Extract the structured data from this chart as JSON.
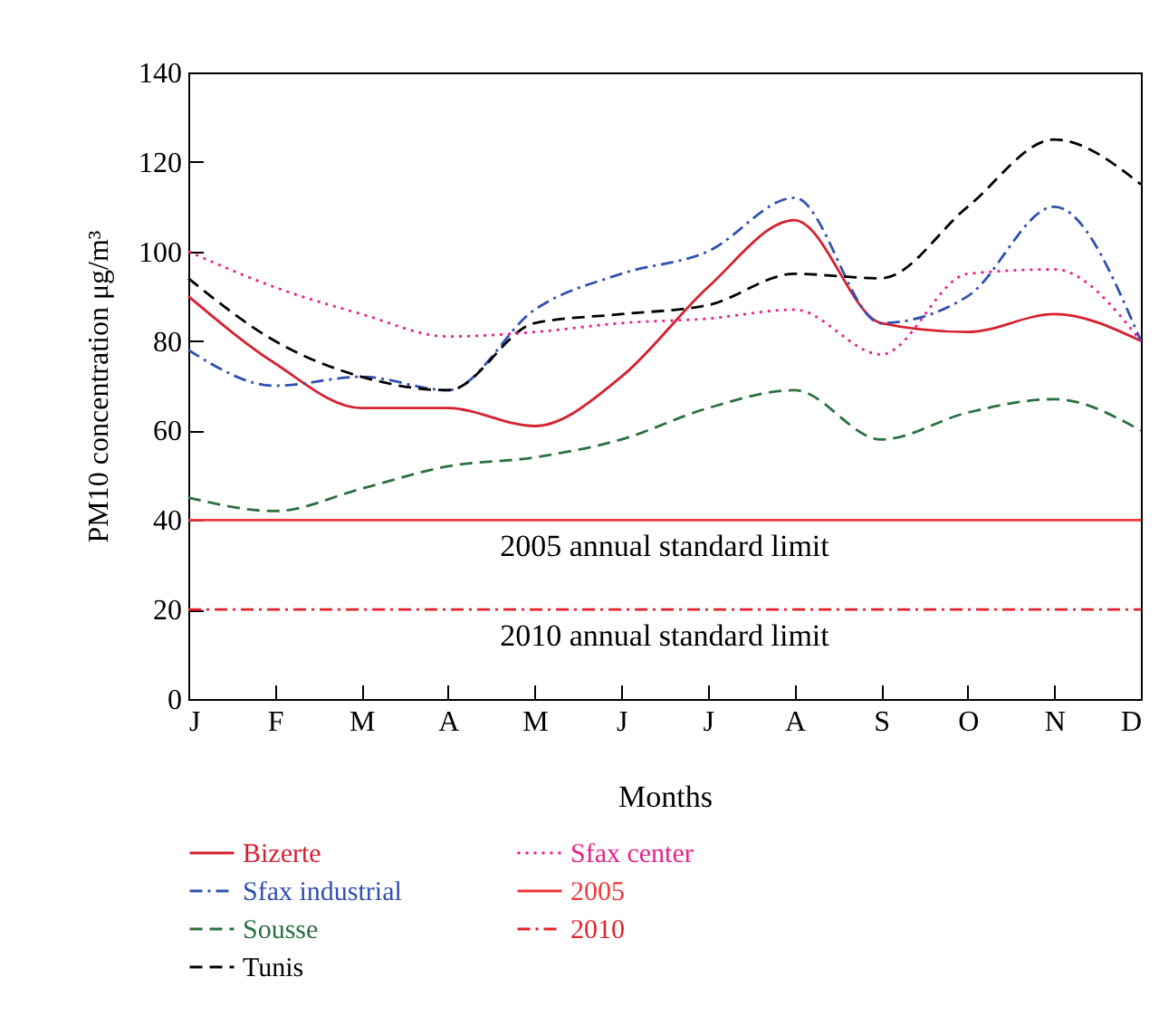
{
  "chart_data": {
    "type": "line",
    "xlabel": "Months",
    "ylabel": "PM10 concentration μg/m³",
    "categories": [
      "J",
      "F",
      "M",
      "A",
      "M",
      "J",
      "J",
      "A",
      "S",
      "O",
      "N",
      "D"
    ],
    "ylim": [
      0,
      140
    ],
    "yticks": [
      0,
      20,
      40,
      60,
      80,
      100,
      120,
      140
    ],
    "grid": false,
    "legend": "bottom",
    "series": [
      {
        "name": "Bizerte",
        "color": "#d62030",
        "line_style": "solid",
        "values": [
          90,
          75,
          65,
          65,
          61,
          72,
          92,
          107,
          84,
          82,
          86,
          80
        ]
      },
      {
        "name": "Sfax industrial",
        "color": "#3050b0",
        "line_style": "dashdot",
        "values": [
          78,
          70,
          72,
          69,
          87,
          95,
          100,
          112,
          84,
          90,
          110,
          80
        ]
      },
      {
        "name": "Sousse",
        "color": "#2a7040",
        "line_style": "dashed",
        "values": [
          45,
          42,
          47,
          52,
          54,
          58,
          65,
          69,
          58,
          64,
          67,
          60
        ]
      },
      {
        "name": "Tunis",
        "color": "#000000",
        "line_style": "dashed",
        "values": [
          94,
          80,
          72,
          69,
          84,
          86,
          88,
          95,
          94,
          110,
          125,
          115
        ]
      },
      {
        "name": "Sfax center",
        "color": "#e8208a",
        "line_style": "dotted",
        "values": [
          100,
          92,
          86,
          81,
          82,
          84,
          85,
          87,
          77,
          95,
          96,
          80
        ]
      },
      {
        "name": "2005",
        "color": "#f03838",
        "line_style": "solid",
        "values": [
          40,
          40,
          40,
          40,
          40,
          40,
          40,
          40,
          40,
          40,
          40,
          40
        ]
      },
      {
        "name": "2010",
        "color": "#e8202a",
        "line_style": "dashdot",
        "values": [
          20,
          20,
          20,
          20,
          20,
          20,
          20,
          20,
          20,
          20,
          20,
          20
        ]
      }
    ],
    "annotations": [
      {
        "text": "2005 annual standard limit",
        "y": 40
      },
      {
        "text": "2010 annual standard limit",
        "y": 20
      }
    ]
  }
}
